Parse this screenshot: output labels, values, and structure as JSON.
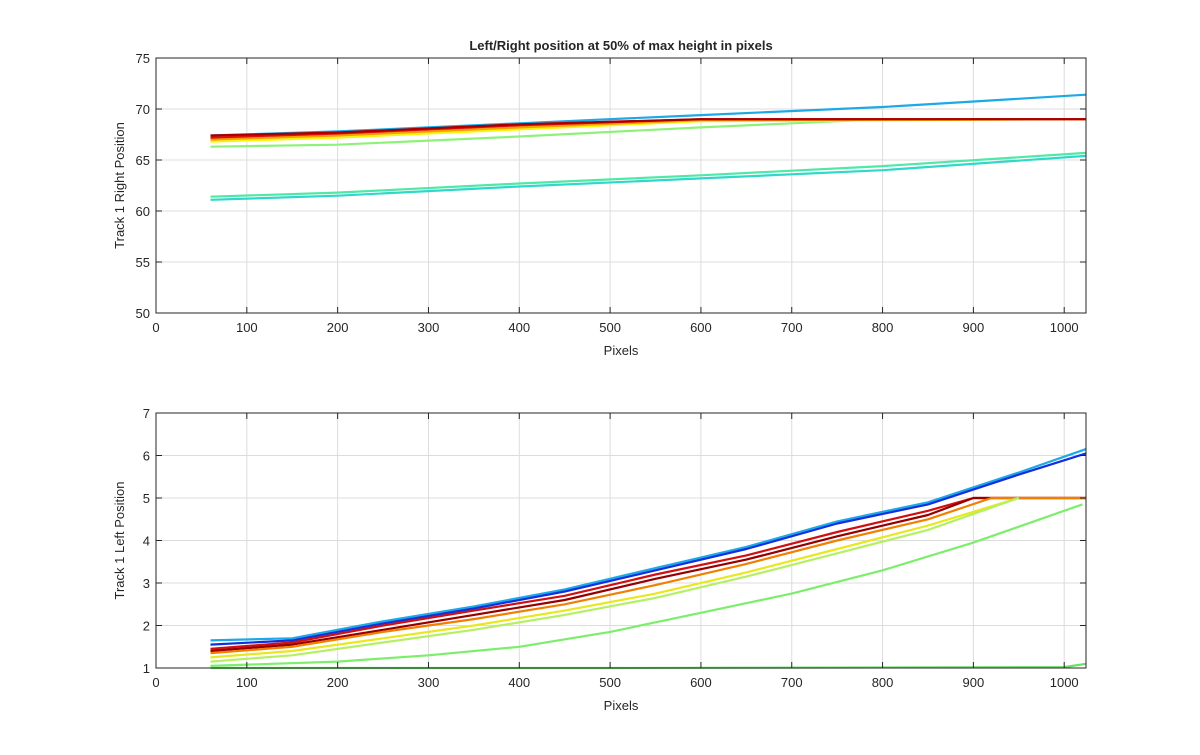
{
  "chart_data": [
    {
      "type": "line",
      "title": "Left/Right position at 50% of max height in pixels",
      "xlabel": "Pixels",
      "ylabel": "Track 1 Right Position",
      "xlim": [
        0,
        1024
      ],
      "ylim": [
        50,
        75
      ],
      "xticks": [
        0,
        100,
        200,
        300,
        400,
        500,
        600,
        700,
        800,
        900,
        1000
      ],
      "yticks": [
        50,
        55,
        60,
        65,
        70,
        75
      ],
      "grid": true,
      "series": [
        {
          "name": "blue group",
          "color": "#1ca9e6",
          "x": [
            60,
            200,
            400,
            600,
            800,
            1024
          ],
          "y": [
            67.4,
            67.8,
            68.6,
            69.4,
            70.2,
            71.4
          ]
        },
        {
          "name": "cyan group",
          "color": "#30d8c8",
          "x": [
            60,
            200,
            400,
            600,
            800,
            1024
          ],
          "y": [
            61.1,
            61.5,
            62.4,
            63.2,
            64.0,
            65.4
          ]
        },
        {
          "name": "teal group",
          "color": "#4fe8a8",
          "x": [
            60,
            200,
            400,
            600,
            800,
            1024
          ],
          "y": [
            61.4,
            61.8,
            62.7,
            63.5,
            64.4,
            65.7
          ]
        },
        {
          "name": "light green",
          "color": "#8ef27a",
          "x": [
            60,
            200,
            400,
            600,
            700,
            800,
            1024
          ],
          "y": [
            66.3,
            66.5,
            67.3,
            68.2,
            68.6,
            69.0,
            69.0
          ]
        },
        {
          "name": "yellow group",
          "color": "#f5f515",
          "x": [
            60,
            200,
            400,
            600,
            1024
          ],
          "y": [
            66.8,
            67.2,
            68.0,
            68.8,
            69.0
          ]
        },
        {
          "name": "orange group",
          "color": "#f5a000",
          "x": [
            60,
            200,
            400,
            600,
            1024
          ],
          "y": [
            67.0,
            67.4,
            68.2,
            68.9,
            69.0
          ]
        },
        {
          "name": "red group",
          "color": "#e01010",
          "x": [
            60,
            200,
            400,
            600,
            1024
          ],
          "y": [
            67.2,
            67.6,
            68.4,
            69.0,
            69.0
          ]
        },
        {
          "name": "dark red group",
          "color": "#a80000",
          "x": [
            60,
            200,
            400,
            600,
            1024
          ],
          "y": [
            67.4,
            67.7,
            68.5,
            69.0,
            69.0
          ]
        }
      ]
    },
    {
      "type": "line",
      "title": "",
      "xlabel": "Pixels",
      "ylabel": "Track 1 Left Position",
      "xlim": [
        0,
        1024
      ],
      "ylim": [
        1,
        7
      ],
      "xticks": [
        0,
        100,
        200,
        300,
        400,
        500,
        600,
        700,
        800,
        900,
        1000
      ],
      "yticks": [
        1,
        2,
        3,
        4,
        5,
        6,
        7
      ],
      "grid": true,
      "series": [
        {
          "name": "blue group",
          "color": "#1ca9e6",
          "x": [
            60,
            150,
            250,
            350,
            450,
            550,
            650,
            750,
            850,
            950,
            1024
          ],
          "y": [
            1.65,
            1.7,
            2.1,
            2.45,
            2.85,
            3.35,
            3.85,
            4.45,
            4.9,
            5.6,
            6.15
          ]
        },
        {
          "name": "dark blue",
          "color": "#1030e0",
          "x": [
            60,
            150,
            250,
            350,
            450,
            550,
            650,
            750,
            850,
            950,
            1024
          ],
          "y": [
            1.55,
            1.65,
            2.05,
            2.4,
            2.8,
            3.3,
            3.8,
            4.4,
            4.85,
            5.55,
            6.05
          ]
        },
        {
          "name": "red group",
          "color": "#d01010",
          "x": [
            60,
            150,
            250,
            350,
            450,
            550,
            650,
            750,
            850,
            900,
            1024
          ],
          "y": [
            1.45,
            1.6,
            2.0,
            2.35,
            2.7,
            3.2,
            3.65,
            4.2,
            4.7,
            5.0,
            5.0
          ]
        },
        {
          "name": "dark red group",
          "color": "#960000",
          "x": [
            60,
            150,
            250,
            350,
            450,
            550,
            650,
            750,
            850,
            900,
            1024
          ],
          "y": [
            1.4,
            1.55,
            1.9,
            2.25,
            2.6,
            3.1,
            3.55,
            4.1,
            4.6,
            5.0,
            5.0
          ]
        },
        {
          "name": "orange group",
          "color": "#f08000",
          "x": [
            60,
            150,
            250,
            350,
            450,
            550,
            650,
            750,
            850,
            920,
            1024
          ],
          "y": [
            1.35,
            1.5,
            1.85,
            2.15,
            2.5,
            2.95,
            3.45,
            4.0,
            4.5,
            5.0,
            5.0
          ]
        },
        {
          "name": "yellow group",
          "color": "#e8e820",
          "x": [
            60,
            150,
            250,
            350,
            450,
            550,
            650,
            750,
            850,
            950
          ],
          "y": [
            1.25,
            1.4,
            1.7,
            2.0,
            2.35,
            2.75,
            3.25,
            3.8,
            4.35,
            5.0
          ]
        },
        {
          "name": "light green group",
          "color": "#b4f064",
          "x": [
            60,
            150,
            250,
            350,
            450,
            550,
            650,
            750,
            850,
            950
          ],
          "y": [
            1.15,
            1.3,
            1.6,
            1.9,
            2.25,
            2.65,
            3.15,
            3.7,
            4.25,
            5.0
          ]
        },
        {
          "name": "green outlier",
          "color": "#7cee6c",
          "x": [
            60,
            200,
            300,
            400,
            500,
            600,
            700,
            800,
            900,
            1020
          ],
          "y": [
            1.05,
            1.15,
            1.3,
            1.5,
            1.85,
            2.3,
            2.75,
            3.3,
            3.95,
            4.85
          ]
        },
        {
          "name": "green baseline",
          "color": "#66e066",
          "x": [
            60,
            500,
            1000,
            1024
          ],
          "y": [
            1.0,
            1.0,
            1.02,
            1.1
          ]
        }
      ]
    }
  ],
  "colors": {
    "axes": "#262626",
    "grid": "#dcdcdc",
    "background": "#ffffff"
  }
}
